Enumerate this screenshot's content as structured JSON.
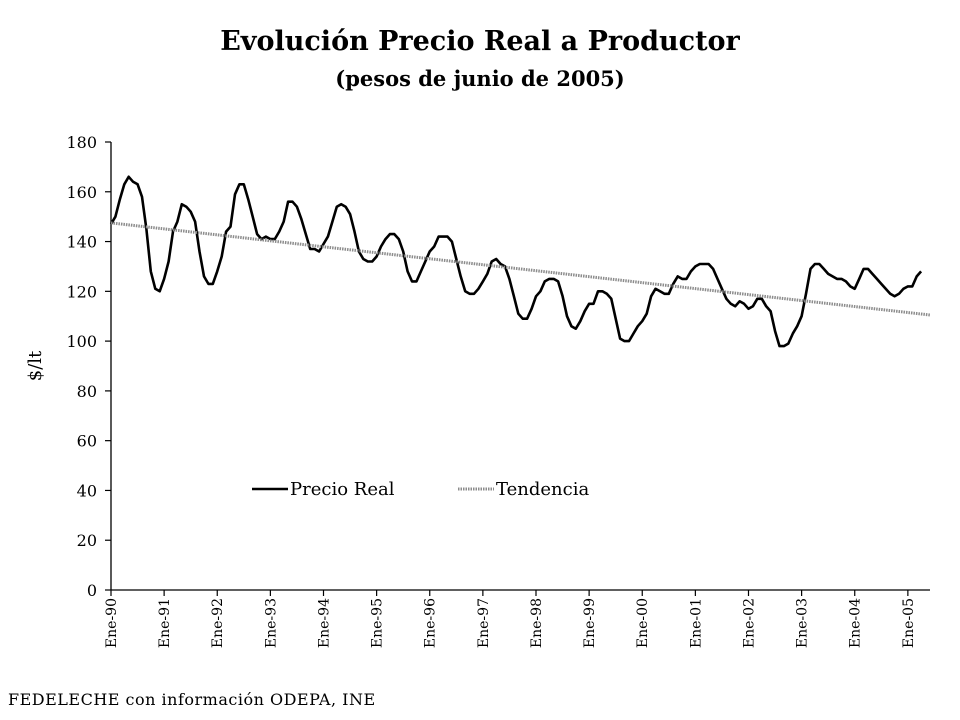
{
  "chart_data": {
    "type": "line",
    "title": "Evolución Precio Real a Productor",
    "subtitle": "(pesos de junio de 2005)",
    "ylabel": "$/lt",
    "xlabel": "",
    "ylim": [
      0,
      180
    ],
    "yticks": [
      0,
      20,
      40,
      60,
      80,
      100,
      120,
      140,
      160,
      180
    ],
    "xlim": [
      0,
      185
    ],
    "xtick_labels": [
      "Ene-90",
      "Ene-91",
      "Ene-92",
      "Ene-93",
      "Ene-94",
      "Ene-95",
      "Ene-96",
      "Ene-97",
      "Ene-98",
      "Ene-99",
      "Ene-00",
      "Ene-01",
      "Ene-02",
      "Ene-03",
      "Ene-04",
      "Ene-05"
    ],
    "xtick_positions": [
      0,
      12,
      24,
      36,
      48,
      60,
      72,
      84,
      96,
      108,
      120,
      132,
      144,
      156,
      168,
      180
    ],
    "grid": false,
    "legend_position": "center",
    "series": [
      {
        "name": "Precio Real",
        "color": "#000000",
        "points": [
          [
            0,
            147
          ],
          [
            1,
            150
          ],
          [
            2,
            157
          ],
          [
            3,
            163
          ],
          [
            4,
            166
          ],
          [
            5,
            164
          ],
          [
            6,
            163
          ],
          [
            7,
            158
          ],
          [
            8,
            145
          ],
          [
            9,
            128
          ],
          [
            10,
            121
          ],
          [
            11,
            120
          ],
          [
            12,
            125
          ],
          [
            13,
            132
          ],
          [
            14,
            144
          ],
          [
            15,
            148
          ],
          [
            16,
            155
          ],
          [
            17,
            154
          ],
          [
            18,
            152
          ],
          [
            19,
            148
          ],
          [
            20,
            136
          ],
          [
            21,
            126
          ],
          [
            22,
            123
          ],
          [
            23,
            123
          ],
          [
            24,
            128
          ],
          [
            25,
            134
          ],
          [
            26,
            144
          ],
          [
            27,
            146
          ],
          [
            28,
            159
          ],
          [
            29,
            163
          ],
          [
            30,
            163
          ],
          [
            31,
            157
          ],
          [
            32,
            150
          ],
          [
            33,
            143
          ],
          [
            34,
            141
          ],
          [
            35,
            142
          ],
          [
            36,
            141
          ],
          [
            37,
            141
          ],
          [
            38,
            144
          ],
          [
            39,
            148
          ],
          [
            40,
            156
          ],
          [
            41,
            156
          ],
          [
            42,
            154
          ],
          [
            43,
            149
          ],
          [
            44,
            143
          ],
          [
            45,
            137
          ],
          [
            46,
            137
          ],
          [
            47,
            136
          ],
          [
            48,
            139
          ],
          [
            49,
            142
          ],
          [
            50,
            148
          ],
          [
            51,
            154
          ],
          [
            52,
            155
          ],
          [
            53,
            154
          ],
          [
            54,
            151
          ],
          [
            55,
            144
          ],
          [
            56,
            136
          ],
          [
            57,
            133
          ],
          [
            58,
            132
          ],
          [
            59,
            132
          ],
          [
            60,
            134
          ],
          [
            61,
            138
          ],
          [
            62,
            141
          ],
          [
            63,
            143
          ],
          [
            64,
            143
          ],
          [
            65,
            141
          ],
          [
            66,
            136
          ],
          [
            67,
            128
          ],
          [
            68,
            124
          ],
          [
            69,
            124
          ],
          [
            70,
            128
          ],
          [
            71,
            132
          ],
          [
            72,
            136
          ],
          [
            73,
            138
          ],
          [
            74,
            142
          ],
          [
            75,
            142
          ],
          [
            76,
            142
          ],
          [
            77,
            140
          ],
          [
            78,
            133
          ],
          [
            79,
            126
          ],
          [
            80,
            120
          ],
          [
            81,
            119
          ],
          [
            82,
            119
          ],
          [
            83,
            121
          ],
          [
            84,
            124
          ],
          [
            85,
            127
          ],
          [
            86,
            132
          ],
          [
            87,
            133
          ],
          [
            88,
            131
          ],
          [
            89,
            130
          ],
          [
            90,
            125
          ],
          [
            91,
            118
          ],
          [
            92,
            111
          ],
          [
            93,
            109
          ],
          [
            94,
            109
          ],
          [
            95,
            113
          ],
          [
            96,
            118
          ],
          [
            97,
            120
          ],
          [
            98,
            124
          ],
          [
            99,
            125
          ],
          [
            100,
            125
          ],
          [
            101,
            124
          ],
          [
            102,
            118
          ],
          [
            103,
            110
          ],
          [
            104,
            106
          ],
          [
            105,
            105
          ],
          [
            106,
            108
          ],
          [
            107,
            112
          ],
          [
            108,
            115
          ],
          [
            109,
            115
          ],
          [
            110,
            120
          ],
          [
            111,
            120
          ],
          [
            112,
            119
          ],
          [
            113,
            117
          ],
          [
            114,
            109
          ],
          [
            115,
            101
          ],
          [
            116,
            100
          ],
          [
            117,
            100
          ],
          [
            118,
            103
          ],
          [
            119,
            106
          ],
          [
            120,
            108
          ],
          [
            121,
            111
          ],
          [
            122,
            118
          ],
          [
            123,
            121
          ],
          [
            124,
            120
          ],
          [
            125,
            119
          ],
          [
            126,
            119
          ],
          [
            127,
            123
          ],
          [
            128,
            126
          ],
          [
            129,
            125
          ],
          [
            130,
            125
          ],
          [
            131,
            128
          ],
          [
            132,
            130
          ],
          [
            133,
            131
          ],
          [
            134,
            131
          ],
          [
            135,
            131
          ],
          [
            136,
            129
          ],
          [
            137,
            125
          ],
          [
            138,
            121
          ],
          [
            139,
            117
          ],
          [
            140,
            115
          ],
          [
            141,
            114
          ],
          [
            142,
            116
          ],
          [
            143,
            115
          ],
          [
            144,
            113
          ],
          [
            145,
            114
          ],
          [
            146,
            117
          ],
          [
            147,
            117
          ],
          [
            148,
            114
          ],
          [
            149,
            112
          ],
          [
            150,
            104
          ],
          [
            151,
            98
          ],
          [
            152,
            98
          ],
          [
            153,
            99
          ],
          [
            154,
            103
          ],
          [
            155,
            106
          ],
          [
            156,
            110
          ],
          [
            157,
            119
          ],
          [
            158,
            129
          ],
          [
            159,
            131
          ],
          [
            160,
            131
          ],
          [
            161,
            129
          ],
          [
            162,
            127
          ],
          [
            163,
            126
          ],
          [
            164,
            125
          ],
          [
            165,
            125
          ],
          [
            166,
            124
          ],
          [
            167,
            122
          ],
          [
            168,
            121
          ],
          [
            169,
            125
          ],
          [
            170,
            129
          ],
          [
            171,
            129
          ],
          [
            172,
            127
          ],
          [
            173,
            125
          ],
          [
            174,
            123
          ],
          [
            175,
            121
          ],
          [
            176,
            119
          ],
          [
            177,
            118
          ],
          [
            178,
            119
          ],
          [
            179,
            121
          ],
          [
            180,
            122
          ],
          [
            181,
            122
          ],
          [
            182,
            126
          ],
          [
            183,
            128
          ]
        ]
      },
      {
        "name": "Tendencia",
        "color": "#8c8c8c",
        "points": [
          [
            0,
            147.5
          ],
          [
            185,
            110.5
          ]
        ]
      }
    ]
  },
  "source_note": "FEDELECHE  con información ODEPA, INE"
}
